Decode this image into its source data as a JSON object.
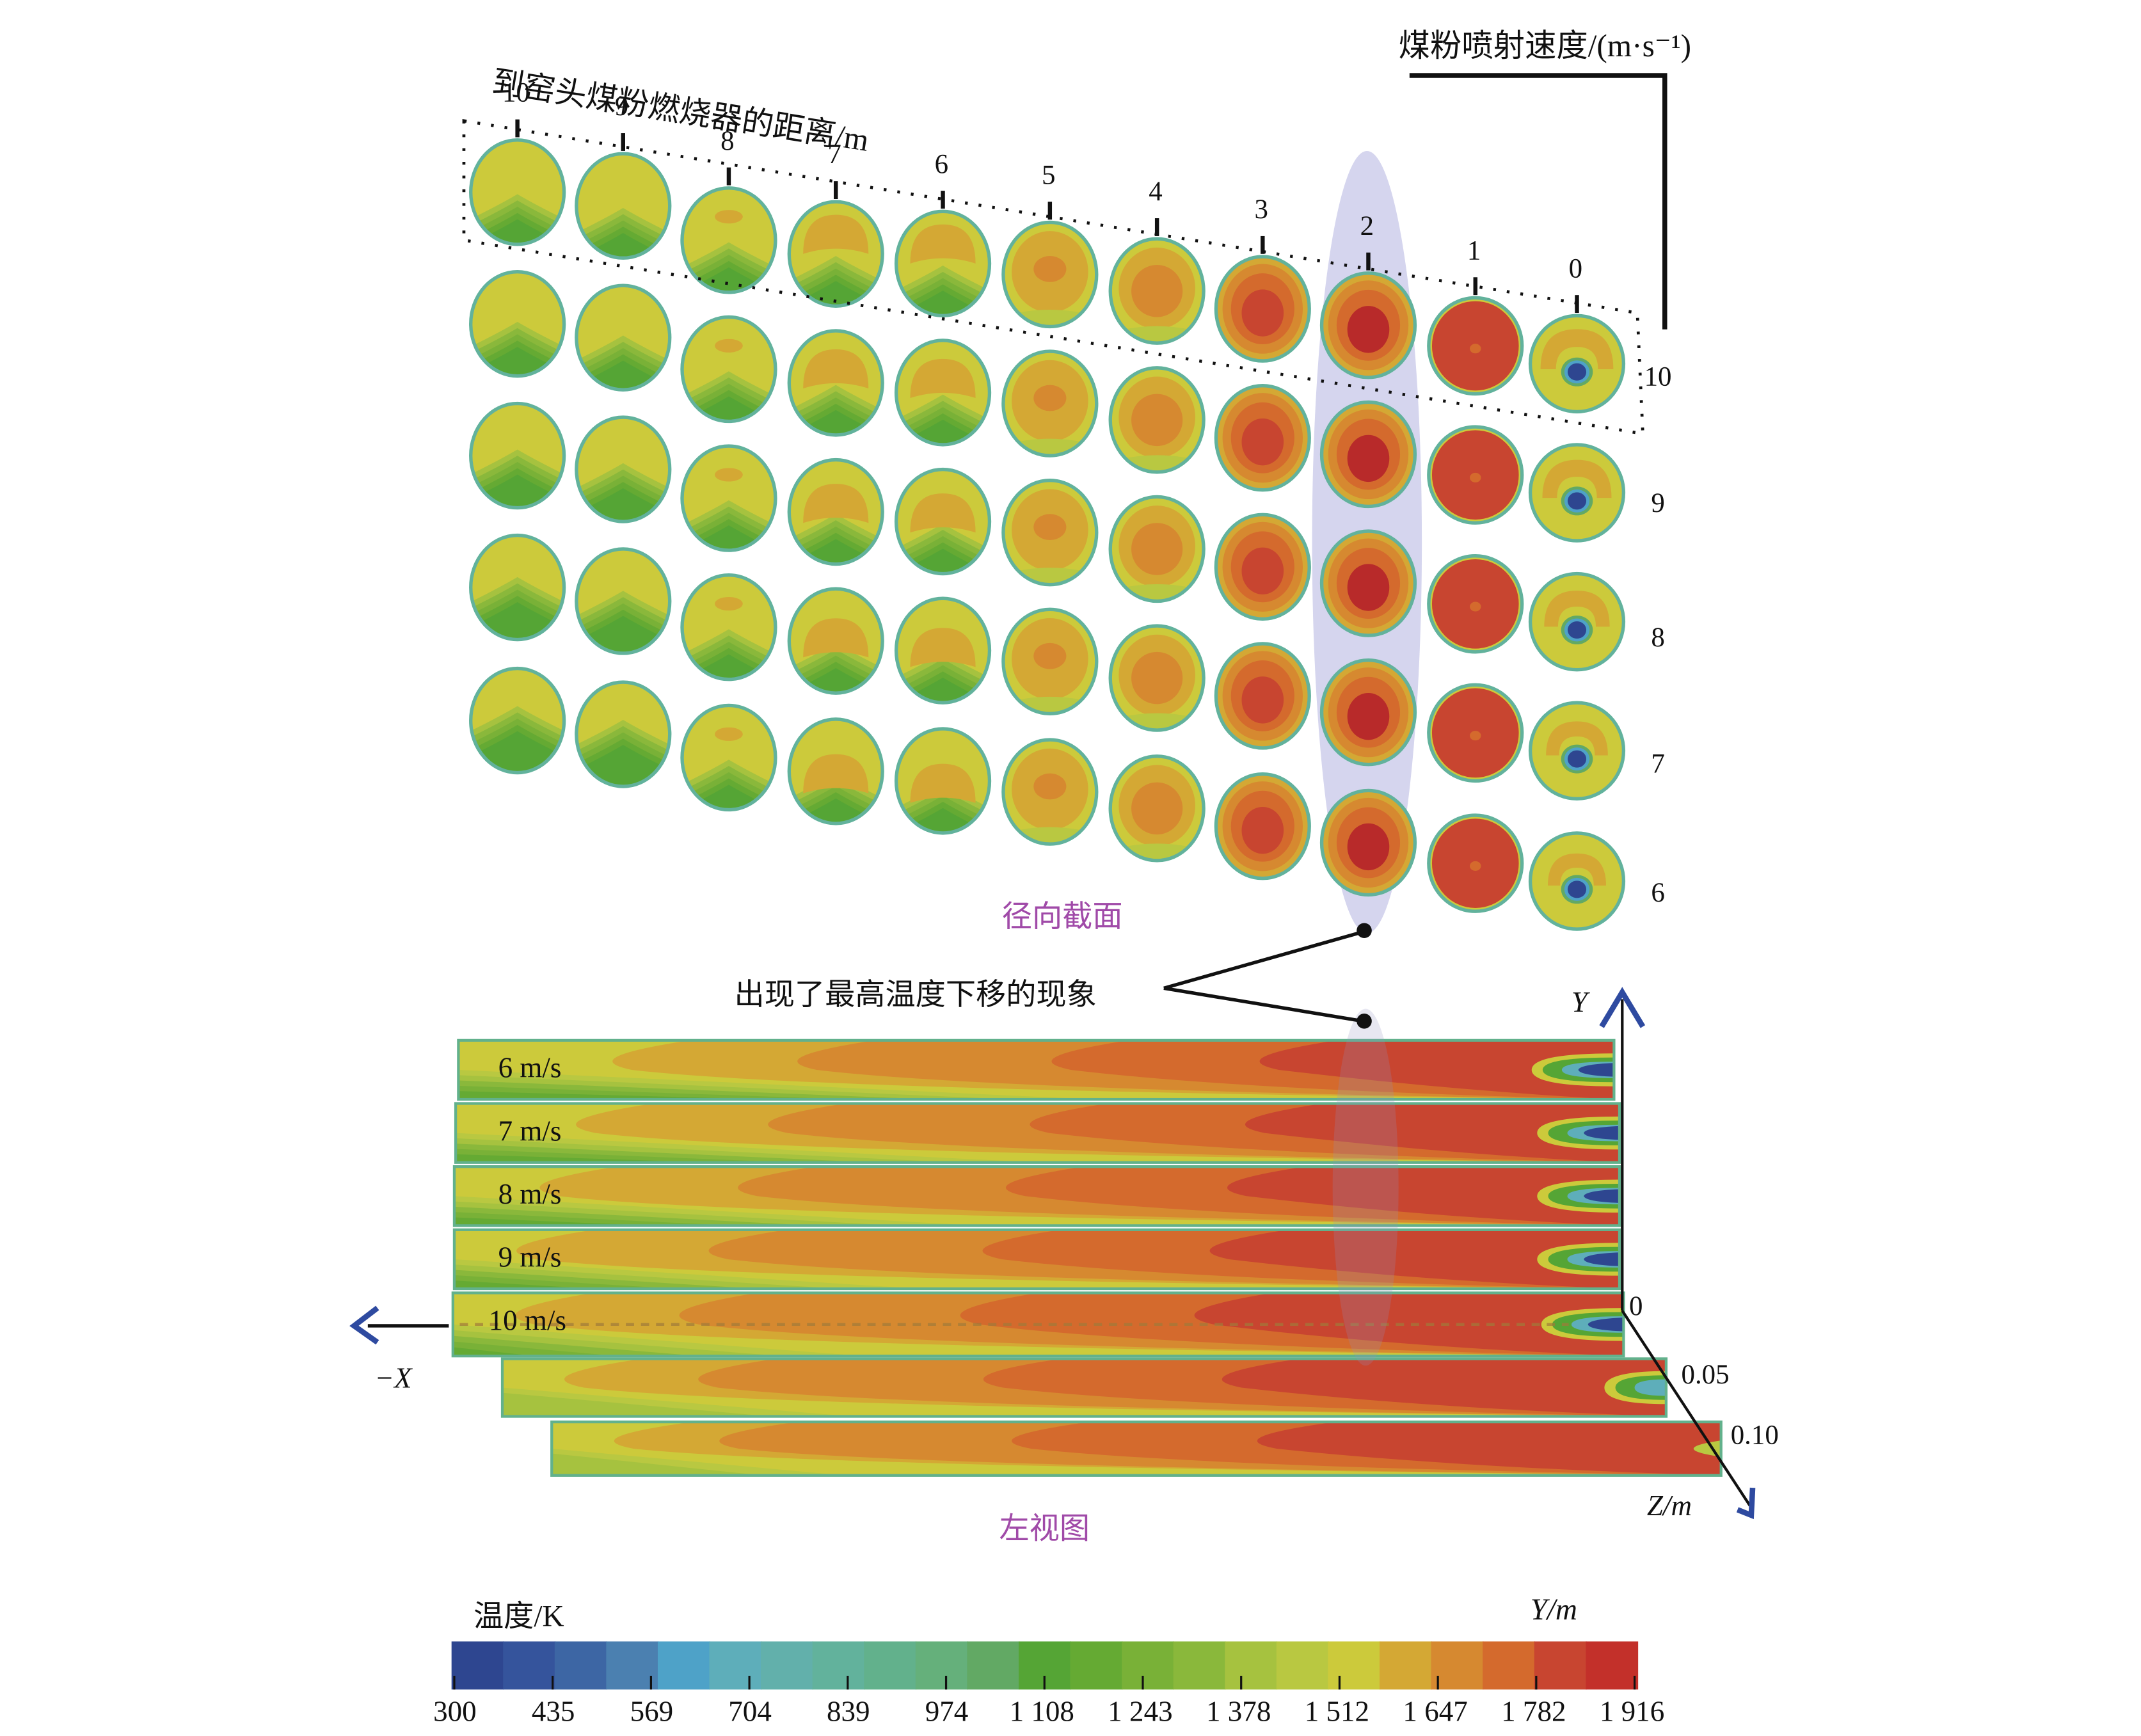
{
  "radial": {
    "distance_axis_label": "到窑头煤粉燃烧器的距离/m",
    "distance_ticks": [
      "10",
      "9",
      "8",
      "7",
      "6",
      "5",
      "4",
      "3",
      "2",
      "1",
      "0"
    ],
    "speed_axis_label": "煤粉喷射速度/(m·s⁻¹)",
    "speed_rows": [
      "10",
      "9",
      "8",
      "7",
      "6"
    ],
    "section_label": "径向截面",
    "highlight_column": "2",
    "columns": [
      {
        "distance": "10",
        "pattern": "cool",
        "max_level": 17
      },
      {
        "distance": "9",
        "pattern": "cool",
        "max_level": 17
      },
      {
        "distance": "8",
        "pattern": "warm-spot",
        "max_level": 18
      },
      {
        "distance": "7",
        "pattern": "warm-cap",
        "max_level": 18
      },
      {
        "distance": "6",
        "pattern": "warm-cap",
        "max_level": 18
      },
      {
        "distance": "5",
        "pattern": "core",
        "max_level": 19
      },
      {
        "distance": "4",
        "pattern": "core",
        "max_level": 19
      },
      {
        "distance": "3",
        "pattern": "hot-core",
        "max_level": 20
      },
      {
        "distance": "2",
        "pattern": "hot-core",
        "max_level": 21
      },
      {
        "distance": "1",
        "pattern": "hot",
        "max_level": 20
      },
      {
        "distance": "0",
        "pattern": "jet",
        "max_level": 18
      }
    ]
  },
  "annotation": {
    "text": "出现了最高温度下移的现象"
  },
  "side_view": {
    "label": "左视图",
    "strips": [
      {
        "speed_label": "6 m/s"
      },
      {
        "speed_label": "7 m/s"
      },
      {
        "speed_label": "8 m/s"
      },
      {
        "speed_label": "9 m/s"
      },
      {
        "speed_label": "10 m/s"
      },
      {
        "speed_label": ""
      },
      {
        "speed_label": ""
      }
    ],
    "axis_y": "Y",
    "axis_x": "−X",
    "axis_z": "Z/m",
    "z_ticks": [
      "0",
      "0.05",
      "0.10"
    ]
  },
  "colorbar": {
    "title": "温度/K",
    "right_label": "Y/m",
    "ticks": [
      "300",
      "435",
      "569",
      "704",
      "839",
      "974",
      "1 108",
      "1 243",
      "1 378",
      "1 512",
      "1 647",
      "1 782",
      "1 916"
    ],
    "min": 300,
    "max": 1916,
    "colors": [
      "#2e4690",
      "#35549c",
      "#3d66a4",
      "#4b80b0",
      "#4ea2c8",
      "#5eaeba",
      "#62b0ab",
      "#62b29c",
      "#62b18c",
      "#65b07b",
      "#62a964",
      "#55a535",
      "#65aa33",
      "#79b137",
      "#8ab83b",
      "#a6c23f",
      "#b9c841",
      "#ccca3b",
      "#d4a834",
      "#d68930",
      "#d46a2d",
      "#c84530",
      "#c3302a"
    ]
  },
  "colors": {
    "highlight": "#c8c8e6",
    "label_purple": "#a04aa8",
    "axis_blue": "#2e4aa0"
  }
}
